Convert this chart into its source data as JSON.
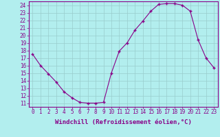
{
  "x": [
    0,
    1,
    2,
    3,
    4,
    5,
    6,
    7,
    8,
    9,
    10,
    11,
    12,
    13,
    14,
    15,
    16,
    17,
    18,
    19,
    20,
    21,
    22,
    23
  ],
  "y": [
    17.5,
    16.0,
    14.9,
    13.8,
    12.5,
    11.7,
    11.1,
    11.0,
    11.0,
    11.1,
    15.0,
    17.9,
    19.0,
    20.7,
    21.9,
    23.2,
    24.1,
    24.2,
    24.2,
    24.0,
    23.2,
    19.4,
    17.0,
    15.7
  ],
  "xlim": [
    -0.5,
    23.5
  ],
  "ylim": [
    10.5,
    24.5
  ],
  "yticks": [
    11,
    12,
    13,
    14,
    15,
    16,
    17,
    18,
    19,
    20,
    21,
    22,
    23,
    24
  ],
  "xticks": [
    0,
    1,
    2,
    3,
    4,
    5,
    6,
    7,
    8,
    9,
    10,
    11,
    12,
    13,
    14,
    15,
    16,
    17,
    18,
    19,
    20,
    21,
    22,
    23
  ],
  "xlabel": "Windchill (Refroidissement éolien,°C)",
  "line_color": "#880088",
  "marker_color": "#880088",
  "bg_color": "#b2eeee",
  "grid_color": "#99cccc",
  "tick_color": "#880088",
  "label_color": "#880088",
  "tick_fontsize": 5.5,
  "xlabel_fontsize": 6.5
}
